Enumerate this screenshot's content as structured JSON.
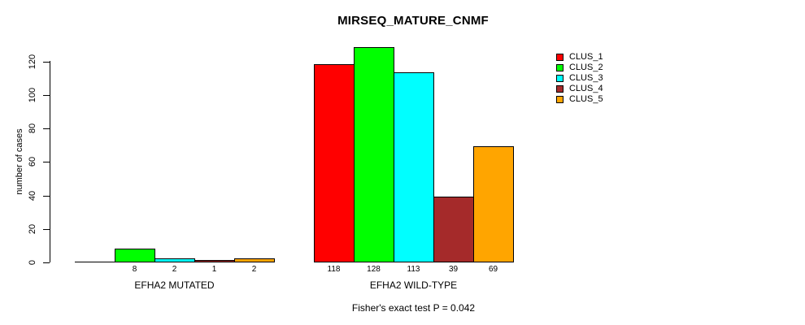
{
  "title": "MIRSEQ_MATURE_CNMF",
  "chart_data": {
    "type": "bar",
    "title": "MIRSEQ_MATURE_CNMF",
    "xlabel": "",
    "ylabel": "number of cases",
    "ylim": [
      0,
      120
    ],
    "yticks": [
      0,
      20,
      40,
      60,
      80,
      100,
      120
    ],
    "grid": false,
    "categories": [
      "EFHA2 MUTATED",
      "EFHA2 WILD-TYPE"
    ],
    "series": [
      {
        "name": "CLUS_1",
        "color": "#FF0000",
        "values": [
          0,
          118
        ]
      },
      {
        "name": "CLUS_2",
        "color": "#00FF00",
        "values": [
          8,
          128
        ]
      },
      {
        "name": "CLUS_3",
        "color": "#00FFFF",
        "values": [
          2,
          113
        ]
      },
      {
        "name": "CLUS_4",
        "color": "#A52A2A",
        "values": [
          1,
          39
        ]
      },
      {
        "name": "CLUS_5",
        "color": "#FFA500",
        "values": [
          2,
          69
        ]
      }
    ],
    "bar_value_labels_shown": [
      "8",
      "2",
      "1",
      "2",
      "118",
      "128",
      "113",
      "39",
      "69"
    ],
    "zero_value_labels_hidden": true,
    "legend_position": "top-right",
    "annotation": "Fisher's exact test P = 0.042"
  }
}
